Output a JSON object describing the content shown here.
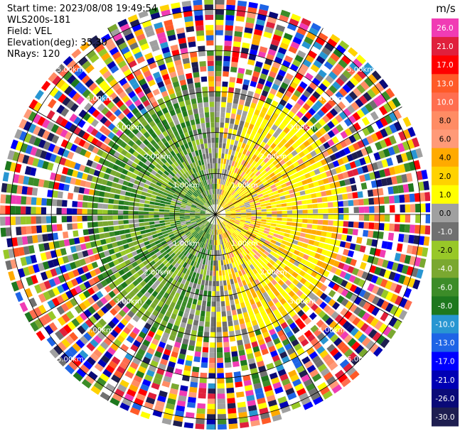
{
  "header": {
    "start_time": "Start time: 2023/08/08 19:49:54",
    "station": "WLS200s-181",
    "field": "Field: VEL",
    "elevation": "Elevation(deg): 35.30",
    "nrays": "NRays: 120"
  },
  "colorbar": {
    "unit": "m/s",
    "ticks": [
      "26.0",
      "21.0",
      "17.0",
      "13.0",
      "10.0",
      "8.0",
      "6.0",
      "4.0",
      "2.0",
      "1.0",
      "0.0",
      "-1.0",
      "-2.0",
      "-4.0",
      "-6.0",
      "-8.0",
      "-10.0",
      "-13.0",
      "-17.0",
      "-21.0",
      "-26.0",
      "-30.0"
    ],
    "colors": [
      "#f03cb4",
      "#e0203c",
      "#ff0000",
      "#ff5a28",
      "#ff6e50",
      "#ff8c64",
      "#ff9a78",
      "#ffaa00",
      "#ffd200",
      "#ffff00",
      "#a0a0a0",
      "#707070",
      "#98c828",
      "#7aa830",
      "#3c8c28",
      "#1e781e",
      "#2896d2",
      "#1e64e6",
      "#0000ff",
      "#0000b4",
      "#0a0a78",
      "#1e1e50"
    ]
  },
  "chart_data": {
    "type": "heatmap",
    "subtype": "polar PPI scan (radial velocity)",
    "field": "VEL",
    "nrays": 120,
    "range_rings_km": [
      1.0,
      2.0,
      3.0,
      4.0,
      5.0
    ],
    "ring_labels": [
      "1.00km",
      "2.00km",
      "3.00km",
      "4.00km",
      "5.00km"
    ],
    "spokes_deg": [
      0,
      30,
      60,
      90,
      120,
      150,
      180,
      210,
      240,
      270,
      300,
      330
    ],
    "unit": "m/s",
    "vmin": -30.0,
    "vmax": 26.0,
    "pattern": "inner ~3 km: positive velocities (yellow/orange) on east side, negative (green) on west side, gray near north/south; beyond ~3 km: noisy random colors"
  }
}
